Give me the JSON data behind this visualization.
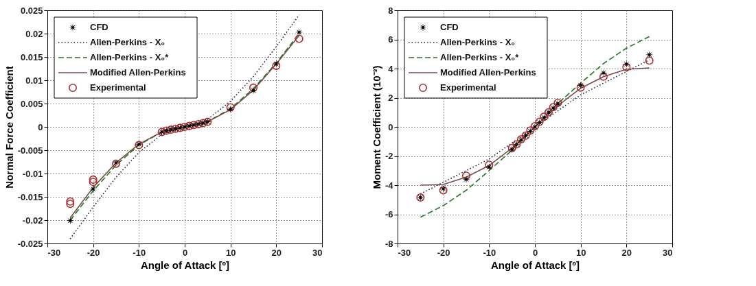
{
  "chart_data": [
    {
      "type": "scatter",
      "xlabel": "Angle of Attack [º]",
      "ylabel": "Normal Force Coefficient",
      "xlim": [
        -30,
        30
      ],
      "xticks": [
        -30,
        -20,
        -10,
        0,
        10,
        20,
        30
      ],
      "ylim": [
        -0.025,
        0.025
      ],
      "yticks": [
        -0.025,
        -0.02,
        -0.015,
        -0.01,
        -0.005,
        0,
        0.005,
        0.01,
        0.015,
        0.02,
        0.025
      ],
      "grid": true,
      "legend": "top left",
      "series": [
        {
          "name": "CFD",
          "marker": "star",
          "color": "#000000",
          "x": [
            -25,
            -20,
            -15,
            -10,
            -5,
            -4,
            -3,
            -2,
            -1,
            0,
            1,
            2,
            3,
            4,
            5,
            10,
            15,
            20,
            25
          ],
          "values": [
            -0.0201,
            -0.0133,
            -0.0077,
            -0.0037,
            -0.0011,
            -0.0008,
            -0.0006,
            -0.0004,
            -0.0002,
            0,
            0.0002,
            0.0004,
            0.0006,
            0.0008,
            0.0011,
            0.0038,
            0.0078,
            0.0135,
            0.0203
          ]
        },
        {
          "name": "Allen-Perkins - X₀",
          "type": "line",
          "line_style": "dotted",
          "marker": "none",
          "color": "#1a1a3a",
          "x": [
            -25,
            -20,
            -15,
            -10,
            -5,
            0,
            5,
            10,
            15,
            20,
            25
          ],
          "values": [
            -0.024,
            -0.0172,
            -0.0108,
            -0.0055,
            -0.0016,
            0,
            0.0016,
            0.0055,
            0.0108,
            0.0172,
            0.024
          ]
        },
        {
          "name": "Allen-Perkins - X₀*",
          "type": "line",
          "line_style": "dashed",
          "marker": "none",
          "color": "#1e7a1e",
          "x": [
            -25,
            -20,
            -15,
            -10,
            -5,
            0,
            5,
            10,
            15,
            20,
            25
          ],
          "values": [
            -0.02,
            -0.0137,
            -0.0082,
            -0.0039,
            -0.0011,
            0,
            0.0011,
            0.0039,
            0.0082,
            0.0137,
            0.02
          ]
        },
        {
          "name": "Modified Allen-Perkins",
          "type": "line",
          "line_style": "solid",
          "marker": "none",
          "color": "#7a4a4a",
          "x": [
            -25,
            -20,
            -15,
            -10,
            -5,
            0,
            5,
            10,
            15,
            20,
            25
          ],
          "values": [
            -0.0195,
            -0.013,
            -0.0077,
            -0.0037,
            -0.0011,
            0,
            0.0011,
            0.0037,
            0.0079,
            0.0135,
            0.0196
          ]
        },
        {
          "name": "Experimental",
          "marker": "circle",
          "color": "#b03030",
          "x": [
            -25,
            -25,
            -20,
            -20,
            -15,
            -10,
            -5,
            -4,
            -3,
            -2,
            -1,
            0,
            1,
            2,
            3,
            4,
            5,
            10,
            15,
            20,
            25
          ],
          "values": [
            -0.016,
            -0.0165,
            -0.0113,
            -0.0118,
            -0.0079,
            -0.0039,
            -0.0011,
            -0.0008,
            -0.0006,
            -0.0004,
            -0.0002,
            0,
            0.0002,
            0.0004,
            0.0006,
            0.0008,
            0.0011,
            0.0042,
            0.0084,
            0.0131,
            0.0189
          ]
        }
      ]
    },
    {
      "type": "scatter",
      "xlabel": "Angle of Attack [º]",
      "ylabel": "Moment Coefficient (10⁻³)",
      "xlim": [
        -30,
        30
      ],
      "xticks": [
        -30,
        -20,
        -10,
        0,
        10,
        20,
        30
      ],
      "ylim": [
        -8,
        8
      ],
      "yticks": [
        -8,
        -6,
        -4,
        -2,
        0,
        2,
        4,
        6,
        8
      ],
      "grid": true,
      "legend": "top left",
      "series": [
        {
          "name": "CFD",
          "marker": "star",
          "color": "#000000",
          "x": [
            -25,
            -20,
            -15,
            -10,
            -5,
            -4,
            -3,
            -2,
            -1,
            0,
            1,
            2,
            3,
            4,
            5,
            10,
            15,
            20,
            25
          ],
          "values": [
            -4.85,
            -4.25,
            -3.6,
            -2.75,
            -1.55,
            -1.2,
            -0.9,
            -0.6,
            -0.3,
            0,
            0.3,
            0.65,
            1.0,
            1.3,
            1.6,
            2.85,
            3.7,
            4.3,
            4.95
          ]
        },
        {
          "name": "Allen-Perkins - X₀",
          "type": "line",
          "line_style": "dotted",
          "marker": "none",
          "color": "#1a1a3a",
          "x": [
            -25,
            -20,
            -15,
            -10,
            -5,
            0,
            5,
            10,
            15,
            20,
            25
          ],
          "values": [
            -4.6,
            -3.8,
            -3.0,
            -2.2,
            -1.1,
            0,
            1.1,
            2.2,
            3.0,
            3.8,
            4.6
          ]
        },
        {
          "name": "Allen-Perkins - X₀*",
          "type": "line",
          "line_style": "dashed",
          "marker": "none",
          "color": "#1e7a1e",
          "x": [
            -25,
            -20,
            -15,
            -10,
            -5,
            0,
            5,
            10,
            15,
            20,
            25
          ],
          "values": [
            -6.2,
            -5.4,
            -4.35,
            -3.0,
            -1.6,
            0,
            1.6,
            3.0,
            4.35,
            5.4,
            6.2
          ]
        },
        {
          "name": "Modified Allen-Perkins",
          "type": "line",
          "line_style": "solid",
          "marker": "none",
          "color": "#7a4a4a",
          "x": [
            -25,
            -20,
            -15,
            -10,
            -5,
            0,
            5,
            10,
            15,
            20,
            25
          ],
          "values": [
            -4.0,
            -3.95,
            -3.45,
            -2.65,
            -1.45,
            0,
            1.45,
            2.65,
            3.45,
            3.95,
            4.05
          ]
        },
        {
          "name": "Experimental",
          "marker": "circle",
          "color": "#b03030",
          "x": [
            -25,
            -20,
            -15,
            -10,
            -5,
            -4,
            -3,
            -2,
            -1,
            0,
            1,
            2,
            3,
            4,
            5,
            10,
            15,
            20,
            25
          ],
          "values": [
            -4.85,
            -4.35,
            -3.35,
            -2.6,
            -1.45,
            -1.2,
            -0.85,
            -0.6,
            -0.25,
            0.05,
            0.35,
            0.7,
            1.0,
            1.35,
            1.65,
            2.7,
            3.45,
            4.1,
            4.55
          ]
        }
      ]
    }
  ]
}
